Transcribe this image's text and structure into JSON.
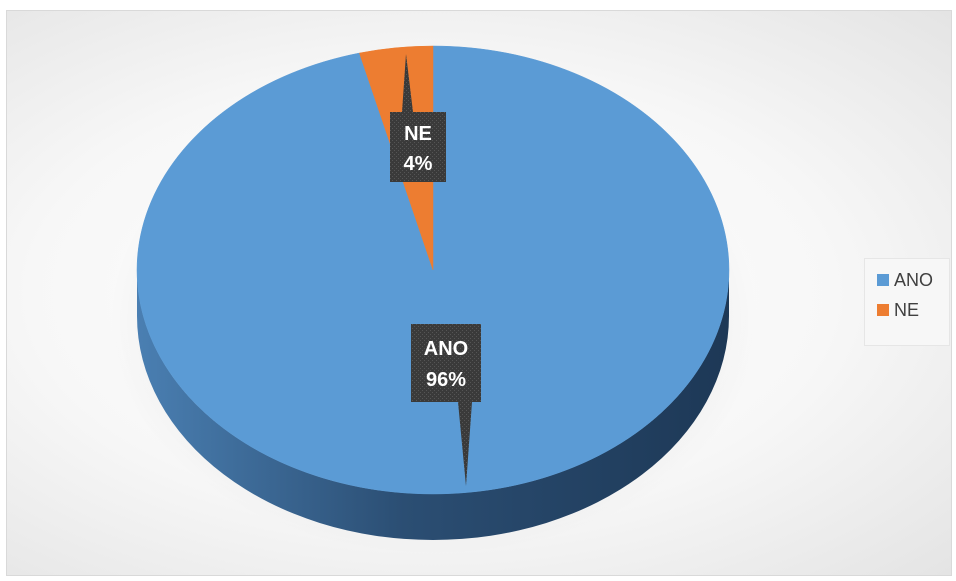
{
  "chart_data": {
    "type": "pie",
    "title": "",
    "categories": [
      "ANO",
      "NE"
    ],
    "values": [
      96,
      4
    ],
    "value_labels": [
      "96%",
      "4%"
    ],
    "colors": [
      "#5b9bd5",
      "#ed7d31"
    ],
    "legend_position": "right",
    "style": "3d"
  },
  "legend": {
    "items": [
      {
        "label": "ANO",
        "color": "#5b9bd5"
      },
      {
        "label": "NE",
        "color": "#ed7d31"
      }
    ]
  }
}
